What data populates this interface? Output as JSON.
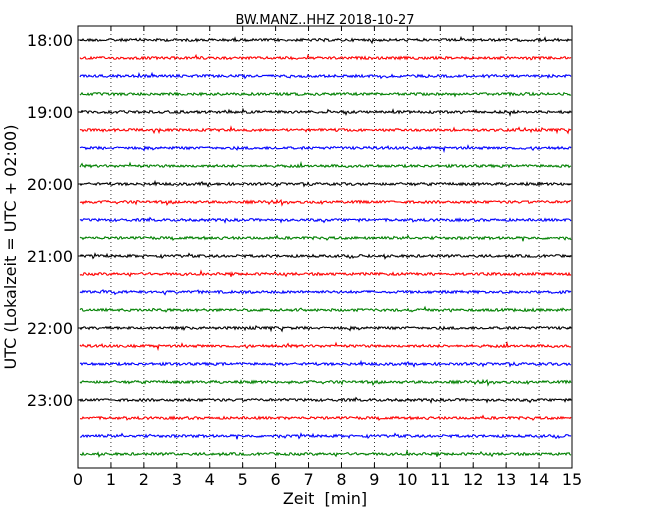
{
  "chart_data": {
    "type": "line",
    "title": "BW.MANZ..HHZ 2018-10-27",
    "xlabel": "Zeit  [min]",
    "ylabel": "UTC (Lokalzeit = UTC + 02:00)",
    "xlim": [
      0,
      15
    ],
    "x_ticks": [
      "0",
      "1",
      "2",
      "3",
      "4",
      "5",
      "6",
      "7",
      "8",
      "9",
      "10",
      "11",
      "12",
      "13",
      "14",
      "15"
    ],
    "y_ticks": [
      "18:00",
      "19:00",
      "20:00",
      "21:00",
      "22:00",
      "23:00"
    ],
    "grid": "vertical dotted",
    "colors": [
      "#000000",
      "#ff0000",
      "#0000ff",
      "#008000"
    ],
    "series": [
      {
        "start": "18:00",
        "color": "#000000"
      },
      {
        "start": "18:15",
        "color": "#ff0000"
      },
      {
        "start": "18:30",
        "color": "#0000ff"
      },
      {
        "start": "18:45",
        "color": "#008000"
      },
      {
        "start": "19:00",
        "color": "#000000"
      },
      {
        "start": "19:15",
        "color": "#ff0000"
      },
      {
        "start": "19:30",
        "color": "#0000ff"
      },
      {
        "start": "19:45",
        "color": "#008000"
      },
      {
        "start": "20:00",
        "color": "#000000"
      },
      {
        "start": "20:15",
        "color": "#ff0000"
      },
      {
        "start": "20:30",
        "color": "#0000ff"
      },
      {
        "start": "20:45",
        "color": "#008000"
      },
      {
        "start": "21:00",
        "color": "#000000"
      },
      {
        "start": "21:15",
        "color": "#ff0000"
      },
      {
        "start": "21:30",
        "color": "#0000ff"
      },
      {
        "start": "21:45",
        "color": "#008000"
      },
      {
        "start": "22:00",
        "color": "#000000"
      },
      {
        "start": "22:15",
        "color": "#ff0000"
      },
      {
        "start": "22:30",
        "color": "#0000ff"
      },
      {
        "start": "22:45",
        "color": "#008000"
      },
      {
        "start": "23:00",
        "color": "#000000"
      },
      {
        "start": "23:15",
        "color": "#ff0000"
      },
      {
        "start": "23:30",
        "color": "#0000ff"
      },
      {
        "start": "23:45",
        "color": "#008000"
      }
    ]
  }
}
